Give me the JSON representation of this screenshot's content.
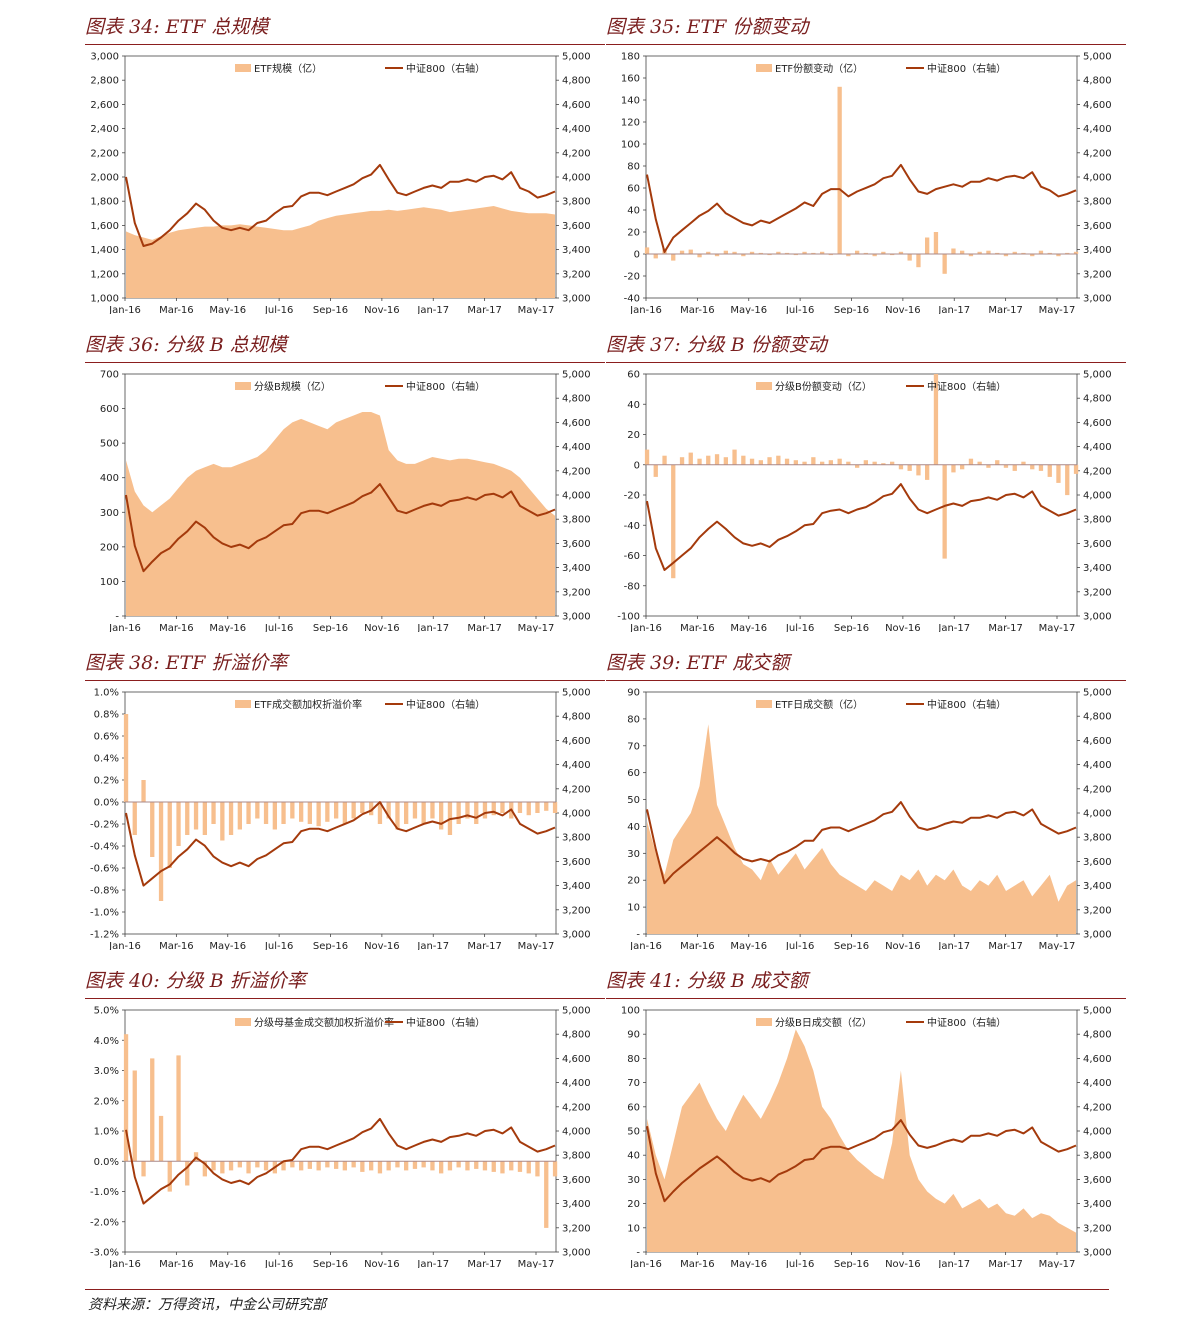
{
  "colors": {
    "fill": "#f7bf8e",
    "line": "#a43a0c",
    "title": "#7a1f1f",
    "rule": "#8b1e1e"
  },
  "source": "资料来源：万得资讯，中金公司研究部",
  "chart_data": [
    {
      "id": "c34",
      "title": "图表 34: ETF 总规模",
      "type": "area",
      "left": {
        "ticks": [
          "1,000",
          "1,200",
          "1,400",
          "1,600",
          "1,800",
          "2,000",
          "2,200",
          "2,400",
          "2,600",
          "2,800",
          "3,000"
        ],
        "min": 1000,
        "max": 3000
      },
      "right": {
        "ticks": [
          "3,000",
          "3,200",
          "3,400",
          "3,600",
          "3,800",
          "4,000",
          "4,200",
          "4,400",
          "4,600",
          "4,800",
          "5,000"
        ],
        "min": 3000,
        "max": 5000
      },
      "xticks": [
        "Jan-16",
        "Mar-16",
        "May-16",
        "Jul-16",
        "Sep-16",
        "Nov-16",
        "Jan-17",
        "Mar-17",
        "May-17"
      ],
      "legend_left": "ETF规模（亿）",
      "legend_right": "中证800（右轴）",
      "fill_kind": "area",
      "fill_values": [
        1550,
        1520,
        1500,
        1480,
        1510,
        1540,
        1560,
        1570,
        1580,
        1590,
        1590,
        1600,
        1600,
        1610,
        1600,
        1590,
        1580,
        1570,
        1560,
        1560,
        1580,
        1600,
        1640,
        1660,
        1680,
        1690,
        1700,
        1710,
        1720,
        1720,
        1730,
        1720,
        1730,
        1740,
        1750,
        1740,
        1730,
        1710,
        1720,
        1730,
        1740,
        1750,
        1760,
        1740,
        1720,
        1710,
        1700,
        1700,
        1700,
        1690
      ],
      "line_values": [
        4000,
        3620,
        3430,
        3450,
        3500,
        3560,
        3640,
        3700,
        3780,
        3730,
        3640,
        3580,
        3560,
        3580,
        3560,
        3620,
        3640,
        3700,
        3750,
        3760,
        3840,
        3870,
        3870,
        3850,
        3880,
        3910,
        3940,
        3990,
        4020,
        4100,
        3980,
        3870,
        3850,
        3880,
        3910,
        3930,
        3910,
        3960,
        3960,
        3980,
        3960,
        4000,
        4010,
        3980,
        4040,
        3910,
        3880,
        3830,
        3850,
        3880
      ],
      "hl": null
    },
    {
      "id": "c35",
      "title": "图表 35: ETF 份额变动",
      "type": "bar",
      "left": {
        "ticks": [
          "-40",
          "-20",
          "0",
          "20",
          "40",
          "60",
          "80",
          "100",
          "120",
          "140",
          "160",
          "180"
        ],
        "min": -40,
        "max": 180
      },
      "right": {
        "ticks": [
          "3,000",
          "3,200",
          "3,400",
          "3,600",
          "3,800",
          "4,000",
          "4,200",
          "4,400",
          "4,600",
          "4,800",
          "5,000"
        ],
        "min": 3000,
        "max": 5000
      },
      "xticks": [
        "Jan-16",
        "Mar-16",
        "May-16",
        "Jul-16",
        "Sep-16",
        "Nov-16",
        "Jan-17",
        "Mar-17",
        "May-17"
      ],
      "legend_left": "ETF份额变动（亿）",
      "legend_right": "中证800（右轴）",
      "fill_kind": "bar",
      "fill_values": [
        6,
        -4,
        5,
        -6,
        3,
        4,
        -3,
        2,
        -2,
        3,
        2,
        -2,
        2,
        1,
        -1,
        2,
        1,
        -1,
        2,
        1,
        2,
        -1,
        152,
        -2,
        3,
        1,
        -2,
        2,
        -1,
        2,
        -6,
        -12,
        15,
        20,
        -18,
        5,
        3,
        -2,
        2,
        3,
        1,
        -2,
        2,
        1,
        -2,
        3,
        1,
        -2,
        1,
        2
      ],
      "line_values": [
        4020,
        3650,
        3380,
        3500,
        3560,
        3620,
        3680,
        3720,
        3780,
        3700,
        3660,
        3620,
        3600,
        3640,
        3620,
        3660,
        3700,
        3740,
        3790,
        3760,
        3860,
        3900,
        3900,
        3840,
        3880,
        3910,
        3940,
        3990,
        4010,
        4100,
        3980,
        3880,
        3860,
        3900,
        3920,
        3940,
        3920,
        3960,
        3960,
        3990,
        3970,
        4000,
        4010,
        3990,
        4040,
        3920,
        3890,
        3840,
        3860,
        3890
      ],
      "hl": 0
    },
    {
      "id": "c36",
      "title": "图表 36: 分级 B 总规模",
      "type": "area",
      "left": {
        "ticks": [
          "-",
          "100",
          "200",
          "300",
          "400",
          "500",
          "600",
          "700"
        ],
        "min": 0,
        "max": 700
      },
      "right": {
        "ticks": [
          "3,000",
          "3,200",
          "3,400",
          "3,600",
          "3,800",
          "4,000",
          "4,200",
          "4,400",
          "4,600",
          "4,800",
          "5,000"
        ],
        "min": 3000,
        "max": 5000
      },
      "xticks": [
        "Jan-16",
        "Mar-16",
        "May-16",
        "Jul-16",
        "Sep-16",
        "Nov-16",
        "Jan-17",
        "Mar-17",
        "May-17"
      ],
      "legend_left": "分级B规模（亿）",
      "legend_right": "中证800（右轴）",
      "fill_kind": "area",
      "fill_values": [
        450,
        360,
        320,
        300,
        320,
        340,
        370,
        400,
        420,
        430,
        440,
        430,
        430,
        440,
        450,
        460,
        480,
        510,
        540,
        560,
        570,
        560,
        550,
        540,
        560,
        570,
        580,
        590,
        590,
        580,
        480,
        450,
        440,
        440,
        450,
        460,
        455,
        450,
        455,
        455,
        450,
        445,
        440,
        430,
        420,
        400,
        370,
        340,
        310,
        290
      ],
      "line_values": [
        4000,
        3580,
        3370,
        3450,
        3520,
        3560,
        3640,
        3700,
        3780,
        3730,
        3650,
        3600,
        3570,
        3590,
        3560,
        3620,
        3650,
        3700,
        3750,
        3760,
        3850,
        3870,
        3870,
        3850,
        3880,
        3910,
        3940,
        3990,
        4020,
        4090,
        3980,
        3870,
        3850,
        3880,
        3910,
        3930,
        3910,
        3950,
        3960,
        3980,
        3960,
        4000,
        4010,
        3980,
        4030,
        3910,
        3870,
        3830,
        3850,
        3880
      ],
      "hl": null
    },
    {
      "id": "c37",
      "title": "图表 37: 分级 B 份额变动",
      "type": "bar",
      "left": {
        "ticks": [
          "-100",
          "-80",
          "-60",
          "-40",
          "-20",
          "0",
          "20",
          "40",
          "60"
        ],
        "min": -100,
        "max": 60
      },
      "right": {
        "ticks": [
          "3,000",
          "3,200",
          "3,400",
          "3,600",
          "3,800",
          "4,000",
          "4,200",
          "4,400",
          "4,600",
          "4,800",
          "5,000"
        ],
        "min": 3000,
        "max": 5000
      },
      "xticks": [
        "Jan-16",
        "Mar-16",
        "May-16",
        "Jul-16",
        "Sep-16",
        "Nov-16",
        "Jan-17",
        "Mar-17",
        "May-17"
      ],
      "legend_left": "分级B份额变动（亿）",
      "legend_right": "中证800（右轴）",
      "fill_kind": "bar",
      "fill_values": [
        10,
        -8,
        6,
        -75,
        5,
        8,
        4,
        6,
        7,
        5,
        10,
        6,
        4,
        3,
        5,
        6,
        4,
        3,
        2,
        5,
        2,
        3,
        4,
        2,
        -2,
        3,
        2,
        1,
        2,
        -3,
        -4,
        -7,
        -10,
        60,
        -62,
        -5,
        -3,
        4,
        2,
        -2,
        3,
        -2,
        -4,
        2,
        -3,
        -4,
        -8,
        -12,
        -20,
        -6
      ],
      "line_values": [
        3950,
        3560,
        3380,
        3440,
        3500,
        3560,
        3650,
        3720,
        3780,
        3720,
        3650,
        3600,
        3580,
        3600,
        3570,
        3630,
        3660,
        3700,
        3750,
        3760,
        3850,
        3870,
        3880,
        3850,
        3880,
        3900,
        3940,
        3990,
        4010,
        4090,
        3970,
        3880,
        3850,
        3880,
        3910,
        3930,
        3910,
        3950,
        3960,
        3980,
        3960,
        4000,
        4010,
        3980,
        4030,
        3910,
        3870,
        3830,
        3850,
        3880
      ],
      "hl": 0
    },
    {
      "id": "c38",
      "title": "图表 38: ETF 折溢价率",
      "type": "bar",
      "left": {
        "ticks": [
          "-1.2%",
          "-1.0%",
          "-0.8%",
          "-0.6%",
          "-0.4%",
          "-0.2%",
          "0.0%",
          "0.2%",
          "0.4%",
          "0.6%",
          "0.8%",
          "1.0%"
        ],
        "min": -1.2,
        "max": 1.0
      },
      "right": {
        "ticks": [
          "3,000",
          "3,200",
          "3,400",
          "3,600",
          "3,800",
          "4,000",
          "4,200",
          "4,400",
          "4,600",
          "4,800",
          "5,000"
        ],
        "min": 3000,
        "max": 5000
      },
      "xticks": [
        "Jan-16",
        "Mar-16",
        "May-16",
        "Jul-16",
        "Sep-16",
        "Nov-16",
        "Jan-17",
        "Mar-17",
        "May-17"
      ],
      "legend_left": "ETF成交额加权折溢价率",
      "legend_right": "中证800（右轴）",
      "fill_kind": "bar",
      "fill_values": [
        0.8,
        -0.3,
        0.2,
        -0.5,
        -0.9,
        -0.6,
        -0.4,
        -0.3,
        -0.25,
        -0.3,
        -0.2,
        -0.35,
        -0.3,
        -0.25,
        -0.2,
        -0.15,
        -0.2,
        -0.25,
        -0.2,
        -0.15,
        -0.18,
        -0.2,
        -0.22,
        -0.18,
        -0.15,
        -0.2,
        -0.15,
        -0.1,
        -0.12,
        -0.2,
        -0.15,
        -0.25,
        -0.2,
        -0.15,
        -0.2,
        -0.15,
        -0.25,
        -0.3,
        -0.2,
        -0.15,
        -0.2,
        -0.15,
        -0.12,
        -0.1,
        -0.15,
        -0.1,
        -0.12,
        -0.1,
        -0.08,
        -0.1
      ],
      "line_values": [
        4000,
        3650,
        3400,
        3460,
        3520,
        3560,
        3640,
        3700,
        3780,
        3730,
        3640,
        3590,
        3560,
        3590,
        3560,
        3620,
        3650,
        3700,
        3750,
        3760,
        3850,
        3870,
        3870,
        3850,
        3880,
        3910,
        3940,
        3990,
        4020,
        4090,
        3970,
        3870,
        3850,
        3880,
        3910,
        3930,
        3910,
        3950,
        3960,
        3980,
        3960,
        4000,
        4010,
        3980,
        4030,
        3910,
        3870,
        3830,
        3850,
        3880
      ],
      "hl": 0
    },
    {
      "id": "c39",
      "title": "图表 39: ETF 成交额",
      "type": "area",
      "left": {
        "ticks": [
          "-",
          "10",
          "20",
          "30",
          "40",
          "50",
          "60",
          "70",
          "80",
          "90"
        ],
        "min": 0,
        "max": 90
      },
      "right": {
        "ticks": [
          "3,000",
          "3,200",
          "3,400",
          "3,600",
          "3,800",
          "4,000",
          "4,200",
          "4,400",
          "4,600",
          "4,800",
          "5,000"
        ],
        "min": 3000,
        "max": 5000
      },
      "xticks": [
        "Jan-16",
        "Mar-16",
        "May-16",
        "Jul-16",
        "Sep-16",
        "Nov-16",
        "Jan-17",
        "Mar-17",
        "May-17"
      ],
      "legend_left": "ETF日成交额（亿）",
      "legend_right": "中证800（右轴）",
      "fill_kind": "area",
      "fill_values": [
        42,
        30,
        22,
        35,
        40,
        45,
        55,
        78,
        48,
        40,
        32,
        26,
        24,
        20,
        28,
        22,
        26,
        30,
        24,
        28,
        32,
        26,
        22,
        20,
        18,
        16,
        20,
        18,
        16,
        22,
        20,
        24,
        18,
        22,
        20,
        24,
        18,
        16,
        20,
        18,
        22,
        16,
        18,
        20,
        14,
        18,
        22,
        12,
        18,
        20
      ],
      "line_values": [
        4030,
        3700,
        3420,
        3500,
        3560,
        3620,
        3680,
        3740,
        3800,
        3740,
        3670,
        3620,
        3600,
        3620,
        3600,
        3650,
        3680,
        3720,
        3770,
        3770,
        3860,
        3880,
        3880,
        3850,
        3880,
        3910,
        3940,
        3990,
        4010,
        4090,
        3970,
        3880,
        3860,
        3880,
        3910,
        3930,
        3920,
        3960,
        3960,
        3980,
        3960,
        4000,
        4010,
        3980,
        4030,
        3910,
        3870,
        3830,
        3850,
        3880
      ],
      "hl": null
    },
    {
      "id": "c40",
      "title": "图表 40: 分级 B 折溢价率",
      "type": "bar",
      "left": {
        "ticks": [
          "-3.0%",
          "-2.0%",
          "-1.0%",
          "0.0%",
          "1.0%",
          "2.0%",
          "3.0%",
          "4.0%",
          "5.0%"
        ],
        "min": -3.0,
        "max": 5.0
      },
      "right": {
        "ticks": [
          "3,000",
          "3,200",
          "3,400",
          "3,600",
          "3,800",
          "4,000",
          "4,200",
          "4,400",
          "4,600",
          "4,800",
          "5,000"
        ],
        "min": 3000,
        "max": 5000
      },
      "xticks": [
        "Jan-16",
        "Mar-16",
        "May-16",
        "Jul-16",
        "Sep-16",
        "Nov-16",
        "Jan-17",
        "Mar-17",
        "May-17"
      ],
      "legend_left": "分级母基金成交额加权折溢价率",
      "legend_right": "中证800（右轴）",
      "fill_kind": "bar",
      "fill_values": [
        4.2,
        3.0,
        -0.5,
        3.4,
        1.5,
        -1.0,
        3.5,
        -0.8,
        0.3,
        -0.5,
        -0.3,
        -0.4,
        -0.3,
        -0.2,
        -0.4,
        -0.2,
        -0.3,
        -0.4,
        -0.3,
        -0.2,
        -0.3,
        -0.25,
        -0.3,
        -0.2,
        -0.25,
        -0.3,
        -0.2,
        -0.35,
        -0.3,
        -0.4,
        -0.3,
        -0.2,
        -0.3,
        -0.25,
        -0.2,
        -0.3,
        -0.4,
        -0.3,
        -0.2,
        -0.3,
        -0.25,
        -0.3,
        -0.35,
        -0.4,
        -0.3,
        -0.35,
        -0.4,
        -0.5,
        -2.2,
        -0.5
      ],
      "line_values": [
        4010,
        3620,
        3400,
        3460,
        3520,
        3560,
        3640,
        3700,
        3780,
        3730,
        3650,
        3600,
        3570,
        3590,
        3560,
        3620,
        3650,
        3700,
        3750,
        3760,
        3850,
        3870,
        3870,
        3850,
        3880,
        3910,
        3940,
        3990,
        4020,
        4100,
        3980,
        3880,
        3850,
        3880,
        3910,
        3930,
        3910,
        3950,
        3960,
        3980,
        3960,
        4000,
        4010,
        3980,
        4030,
        3910,
        3870,
        3830,
        3850,
        3880
      ],
      "hl": 0
    },
    {
      "id": "c41",
      "title": "图表 41: 分级 B 成交额",
      "type": "area",
      "left": {
        "ticks": [
          "-",
          "10",
          "20",
          "30",
          "40",
          "50",
          "60",
          "70",
          "80",
          "90",
          "100"
        ],
        "min": 0,
        "max": 100
      },
      "right": {
        "ticks": [
          "3,000",
          "3,200",
          "3,400",
          "3,600",
          "3,800",
          "4,000",
          "4,200",
          "4,400",
          "4,600",
          "4,800",
          "5,000"
        ],
        "min": 3000,
        "max": 5000
      },
      "xticks": [
        "Jan-16",
        "Mar-16",
        "May-16",
        "Jul-16",
        "Sep-16",
        "Nov-16",
        "Jan-17",
        "Mar-17",
        "May-17"
      ],
      "legend_left": "分级B日成交额（亿）",
      "legend_right": "中证800（右轴）",
      "fill_kind": "area",
      "fill_values": [
        55,
        40,
        30,
        45,
        60,
        65,
        70,
        62,
        55,
        50,
        58,
        65,
        60,
        55,
        62,
        70,
        80,
        92,
        85,
        75,
        60,
        55,
        48,
        42,
        38,
        35,
        32,
        30,
        45,
        75,
        40,
        30,
        25,
        22,
        20,
        24,
        18,
        20,
        22,
        18,
        20,
        16,
        15,
        18,
        14,
        16,
        15,
        12,
        10,
        8
      ],
      "line_values": [
        4040,
        3650,
        3420,
        3500,
        3570,
        3630,
        3690,
        3740,
        3790,
        3730,
        3660,
        3610,
        3590,
        3610,
        3580,
        3640,
        3670,
        3710,
        3760,
        3770,
        3850,
        3870,
        3870,
        3850,
        3880,
        3910,
        3940,
        3990,
        4010,
        4090,
        3970,
        3880,
        3860,
        3880,
        3910,
        3930,
        3910,
        3960,
        3960,
        3980,
        3960,
        4000,
        4010,
        3980,
        4030,
        3910,
        3870,
        3830,
        3850,
        3880
      ],
      "hl": null
    }
  ]
}
